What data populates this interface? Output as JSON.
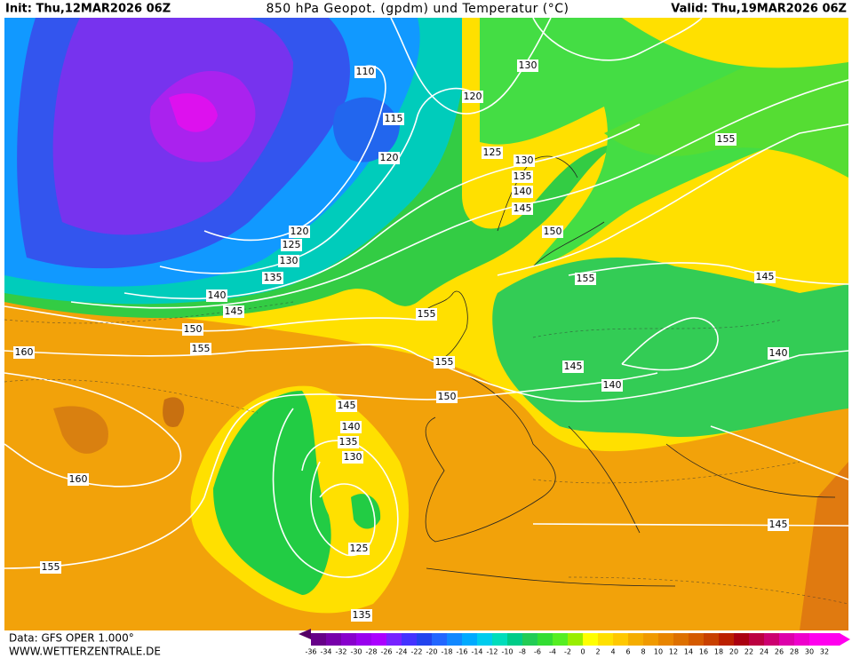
{
  "header": {
    "init": "Init: Thu,12MAR2026 06Z",
    "title": "850 hPa Geopot. (gpdm) und Temperatur (°C)",
    "valid": "Valid: Thu,19MAR2026 06Z"
  },
  "footer": {
    "data": "Data: GFS OPER 1.000°",
    "site": "WWW.WETTERZENTRALE.DE"
  },
  "colorbar": {
    "labels": [
      -36,
      -34,
      -32,
      -30,
      -28,
      -26,
      -24,
      -22,
      -20,
      -18,
      -16,
      -14,
      -12,
      -10,
      -8,
      -6,
      -4,
      -2,
      0,
      2,
      4,
      6,
      8,
      10,
      12,
      14,
      16,
      18,
      20,
      22,
      24,
      26,
      28,
      30,
      32
    ]
  },
  "map": {
    "contour_labels": [
      "110",
      "115",
      "120",
      "120",
      "130",
      "125",
      "130",
      "135",
      "140",
      "145",
      "150",
      "155",
      "155",
      "155",
      "155",
      "150",
      "145",
      "140",
      "145",
      "140",
      "145",
      "160",
      "155",
      "150",
      "145",
      "140",
      "135",
      "130",
      "125",
      "120",
      "160",
      "155",
      "145",
      "140",
      "135",
      "130",
      "125",
      "135"
    ]
  }
}
